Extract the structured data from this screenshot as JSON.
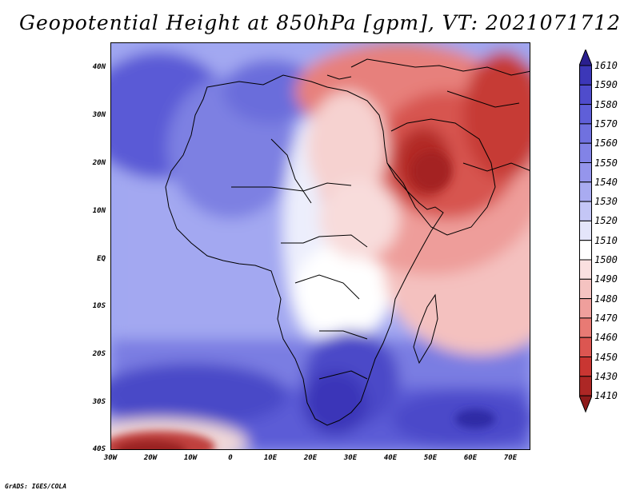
{
  "title": "Geopotential Height at 850hPa [gpm], VT: 2021071712",
  "footer": "GrADS: IGES/COLA",
  "map": {
    "latitude_labels": [
      "40N",
      "30N",
      "20N",
      "10N",
      "EQ",
      "10S",
      "20S",
      "30S",
      "40S"
    ],
    "longitude_labels": [
      "30W",
      "20W",
      "10W",
      "0",
      "10E",
      "20E",
      "30E",
      "40E",
      "50E",
      "60E",
      "70E"
    ]
  },
  "colorbar": {
    "labels": [
      "1610",
      "1590",
      "1580",
      "1570",
      "1560",
      "1550",
      "1540",
      "1530",
      "1520",
      "1510",
      "1500",
      "1490",
      "1480",
      "1470",
      "1460",
      "1450",
      "1430",
      "1410"
    ],
    "colors": [
      "#2a1f8f",
      "#3c37b8",
      "#4f4ccc",
      "#5f5fd8",
      "#7071df",
      "#8283e6",
      "#9595ec",
      "#a9abf1",
      "#c4c6f6",
      "#e4e5fa",
      "#ffffff",
      "#fbe0e0",
      "#f5c3c1",
      "#ef9f9c",
      "#e87a74",
      "#dc5651",
      "#c93632",
      "#ad2725",
      "#8e1b1b"
    ]
  }
}
